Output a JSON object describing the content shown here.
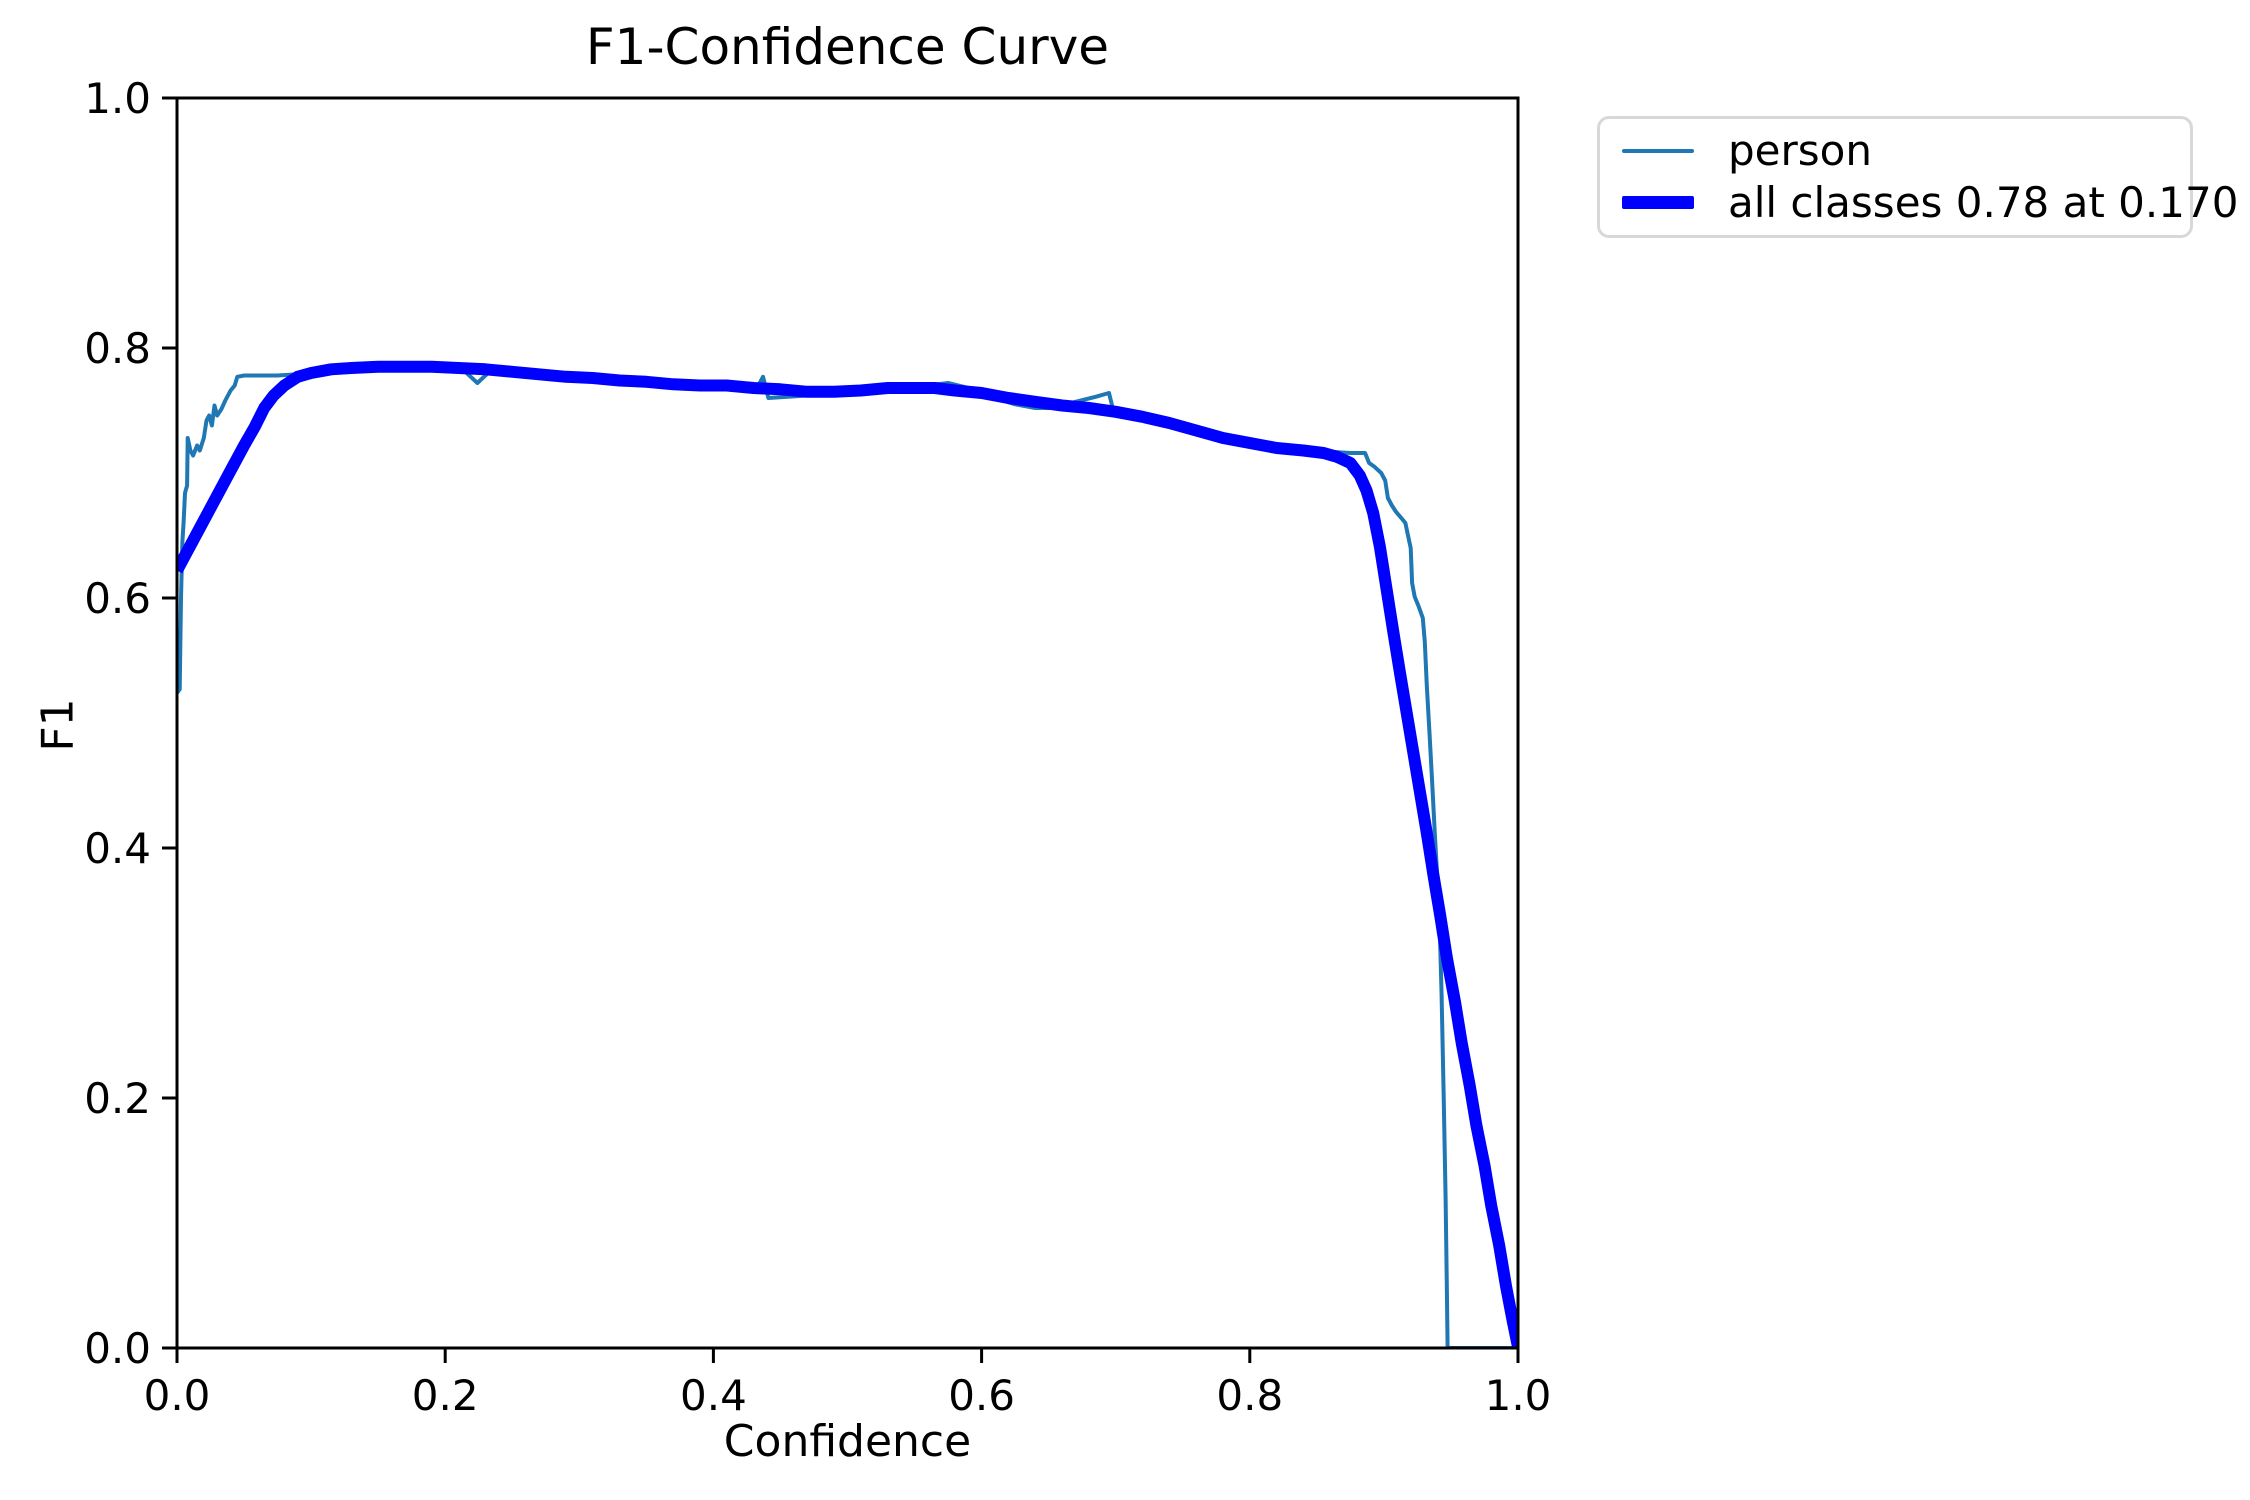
{
  "figure": {
    "title": "F1-Confidence Curve",
    "x_axis_label": "Confidence",
    "y_axis_label": "F1",
    "background_color": "#ffffff",
    "spine_color": "#000000"
  },
  "legend": {
    "border_color": "#d8d8d8",
    "entries": [
      {
        "label": "person",
        "color": "#1f77b4",
        "swatch_height": 4
      },
      {
        "label": "all classes 0.78 at 0.170",
        "color": "#0000ff",
        "swatch_height": 13
      }
    ]
  },
  "chart_data": {
    "type": "line",
    "title": "F1-Confidence Curve",
    "xlabel": "Confidence",
    "ylabel": "F1",
    "xlim": [
      0.0,
      1.0
    ],
    "ylim": [
      0.0,
      1.0
    ],
    "x_ticks": [
      "0.0",
      "0.2",
      "0.4",
      "0.6",
      "0.8",
      "1.0"
    ],
    "y_ticks": [
      "0.0",
      "0.2",
      "0.4",
      "0.6",
      "0.8",
      "1.0"
    ],
    "grid": false,
    "legend_position": "outside upper right",
    "best_f1": 0.78,
    "best_confidence": 0.17,
    "series": [
      {
        "name": "person",
        "legend_label": "person",
        "color": "#1f77b4",
        "line_width": 4,
        "points": [
          [
            0.0,
            0.524
          ],
          [
            0.002,
            0.527
          ],
          [
            0.003,
            0.6
          ],
          [
            0.004,
            0.645
          ],
          [
            0.005,
            0.662
          ],
          [
            0.006,
            0.684
          ],
          [
            0.0075,
            0.69
          ],
          [
            0.008,
            0.728
          ],
          [
            0.01,
            0.718
          ],
          [
            0.012,
            0.714
          ],
          [
            0.015,
            0.722
          ],
          [
            0.017,
            0.718
          ],
          [
            0.02,
            0.728
          ],
          [
            0.022,
            0.742
          ],
          [
            0.024,
            0.746
          ],
          [
            0.026,
            0.738
          ],
          [
            0.028,
            0.754
          ],
          [
            0.03,
            0.746
          ],
          [
            0.033,
            0.751
          ],
          [
            0.036,
            0.758
          ],
          [
            0.04,
            0.766
          ],
          [
            0.043,
            0.77
          ],
          [
            0.045,
            0.777
          ],
          [
            0.05,
            0.778
          ],
          [
            0.06,
            0.778
          ],
          [
            0.075,
            0.778
          ],
          [
            0.09,
            0.779
          ],
          [
            0.11,
            0.781
          ],
          [
            0.14,
            0.784
          ],
          [
            0.17,
            0.785
          ],
          [
            0.2,
            0.784
          ],
          [
            0.215,
            0.781
          ],
          [
            0.224,
            0.772
          ],
          [
            0.232,
            0.78
          ],
          [
            0.26,
            0.779
          ],
          [
            0.3,
            0.776
          ],
          [
            0.34,
            0.773
          ],
          [
            0.37,
            0.77
          ],
          [
            0.4,
            0.768
          ],
          [
            0.428,
            0.766
          ],
          [
            0.434,
            0.771
          ],
          [
            0.437,
            0.777
          ],
          [
            0.441,
            0.76
          ],
          [
            0.47,
            0.762
          ],
          [
            0.5,
            0.765
          ],
          [
            0.53,
            0.768
          ],
          [
            0.56,
            0.77
          ],
          [
            0.575,
            0.772
          ],
          [
            0.59,
            0.768
          ],
          [
            0.61,
            0.76
          ],
          [
            0.625,
            0.755
          ],
          [
            0.64,
            0.752
          ],
          [
            0.655,
            0.752
          ],
          [
            0.67,
            0.757
          ],
          [
            0.685,
            0.761
          ],
          [
            0.695,
            0.764
          ],
          [
            0.698,
            0.751
          ],
          [
            0.71,
            0.748
          ],
          [
            0.73,
            0.741
          ],
          [
            0.75,
            0.735
          ],
          [
            0.78,
            0.727
          ],
          [
            0.81,
            0.721
          ],
          [
            0.84,
            0.718
          ],
          [
            0.86,
            0.717
          ],
          [
            0.875,
            0.716
          ],
          [
            0.886,
            0.716
          ],
          [
            0.889,
            0.708
          ],
          [
            0.893,
            0.705
          ],
          [
            0.898,
            0.7
          ],
          [
            0.901,
            0.694
          ],
          [
            0.903,
            0.68
          ],
          [
            0.906,
            0.674
          ],
          [
            0.909,
            0.669
          ],
          [
            0.913,
            0.664
          ],
          [
            0.916,
            0.66
          ],
          [
            0.918,
            0.65
          ],
          [
            0.92,
            0.64
          ],
          [
            0.921,
            0.612
          ],
          [
            0.923,
            0.601
          ],
          [
            0.926,
            0.593
          ],
          [
            0.929,
            0.584
          ],
          [
            0.9305,
            0.565
          ],
          [
            0.932,
            0.53
          ],
          [
            0.934,
            0.492
          ],
          [
            0.936,
            0.452
          ],
          [
            0.938,
            0.41
          ],
          [
            0.94,
            0.373
          ],
          [
            0.9415,
            0.34
          ],
          [
            0.943,
            0.282
          ],
          [
            0.9445,
            0.205
          ],
          [
            0.946,
            0.12
          ],
          [
            0.947,
            0.045
          ],
          [
            0.9475,
            0.0
          ],
          [
            1.0,
            0.0
          ]
        ]
      },
      {
        "name": "all classes",
        "legend_label": "all classes 0.78 at 0.170",
        "color": "#0000ff",
        "line_width": 12,
        "points": [
          [
            0.0,
            0.622
          ],
          [
            0.01,
            0.642
          ],
          [
            0.02,
            0.662
          ],
          [
            0.03,
            0.682
          ],
          [
            0.04,
            0.702
          ],
          [
            0.05,
            0.722
          ],
          [
            0.058,
            0.737
          ],
          [
            0.065,
            0.752
          ],
          [
            0.072,
            0.762
          ],
          [
            0.08,
            0.77
          ],
          [
            0.09,
            0.777
          ],
          [
            0.1,
            0.78
          ],
          [
            0.115,
            0.783
          ],
          [
            0.13,
            0.784
          ],
          [
            0.15,
            0.785
          ],
          [
            0.17,
            0.785
          ],
          [
            0.19,
            0.785
          ],
          [
            0.21,
            0.784
          ],
          [
            0.23,
            0.783
          ],
          [
            0.25,
            0.781
          ],
          [
            0.27,
            0.779
          ],
          [
            0.29,
            0.777
          ],
          [
            0.31,
            0.776
          ],
          [
            0.33,
            0.774
          ],
          [
            0.35,
            0.773
          ],
          [
            0.37,
            0.771
          ],
          [
            0.39,
            0.77
          ],
          [
            0.41,
            0.77
          ],
          [
            0.43,
            0.768
          ],
          [
            0.45,
            0.767
          ],
          [
            0.47,
            0.765
          ],
          [
            0.49,
            0.765
          ],
          [
            0.51,
            0.766
          ],
          [
            0.53,
            0.768
          ],
          [
            0.55,
            0.768
          ],
          [
            0.565,
            0.768
          ],
          [
            0.58,
            0.766
          ],
          [
            0.6,
            0.764
          ],
          [
            0.62,
            0.76
          ],
          [
            0.64,
            0.757
          ],
          [
            0.66,
            0.754
          ],
          [
            0.68,
            0.752
          ],
          [
            0.7,
            0.749
          ],
          [
            0.72,
            0.745
          ],
          [
            0.74,
            0.74
          ],
          [
            0.76,
            0.734
          ],
          [
            0.78,
            0.728
          ],
          [
            0.8,
            0.724
          ],
          [
            0.82,
            0.72
          ],
          [
            0.84,
            0.718
          ],
          [
            0.855,
            0.716
          ],
          [
            0.865,
            0.713
          ],
          [
            0.875,
            0.708
          ],
          [
            0.882,
            0.698
          ],
          [
            0.887,
            0.686
          ],
          [
            0.892,
            0.668
          ],
          [
            0.897,
            0.641
          ],
          [
            0.902,
            0.607
          ],
          [
            0.907,
            0.573
          ],
          [
            0.912,
            0.54
          ],
          [
            0.917,
            0.508
          ],
          [
            0.922,
            0.476
          ],
          [
            0.927,
            0.444
          ],
          [
            0.932,
            0.412
          ],
          [
            0.937,
            0.378
          ],
          [
            0.942,
            0.346
          ],
          [
            0.947,
            0.312
          ],
          [
            0.953,
            0.277
          ],
          [
            0.958,
            0.244
          ],
          [
            0.964,
            0.21
          ],
          [
            0.969,
            0.178
          ],
          [
            0.975,
            0.146
          ],
          [
            0.98,
            0.114
          ],
          [
            0.986,
            0.082
          ],
          [
            0.991,
            0.05
          ],
          [
            0.996,
            0.022
          ],
          [
            0.999,
            0.006
          ],
          [
            1.0,
            0.001
          ]
        ]
      }
    ]
  }
}
